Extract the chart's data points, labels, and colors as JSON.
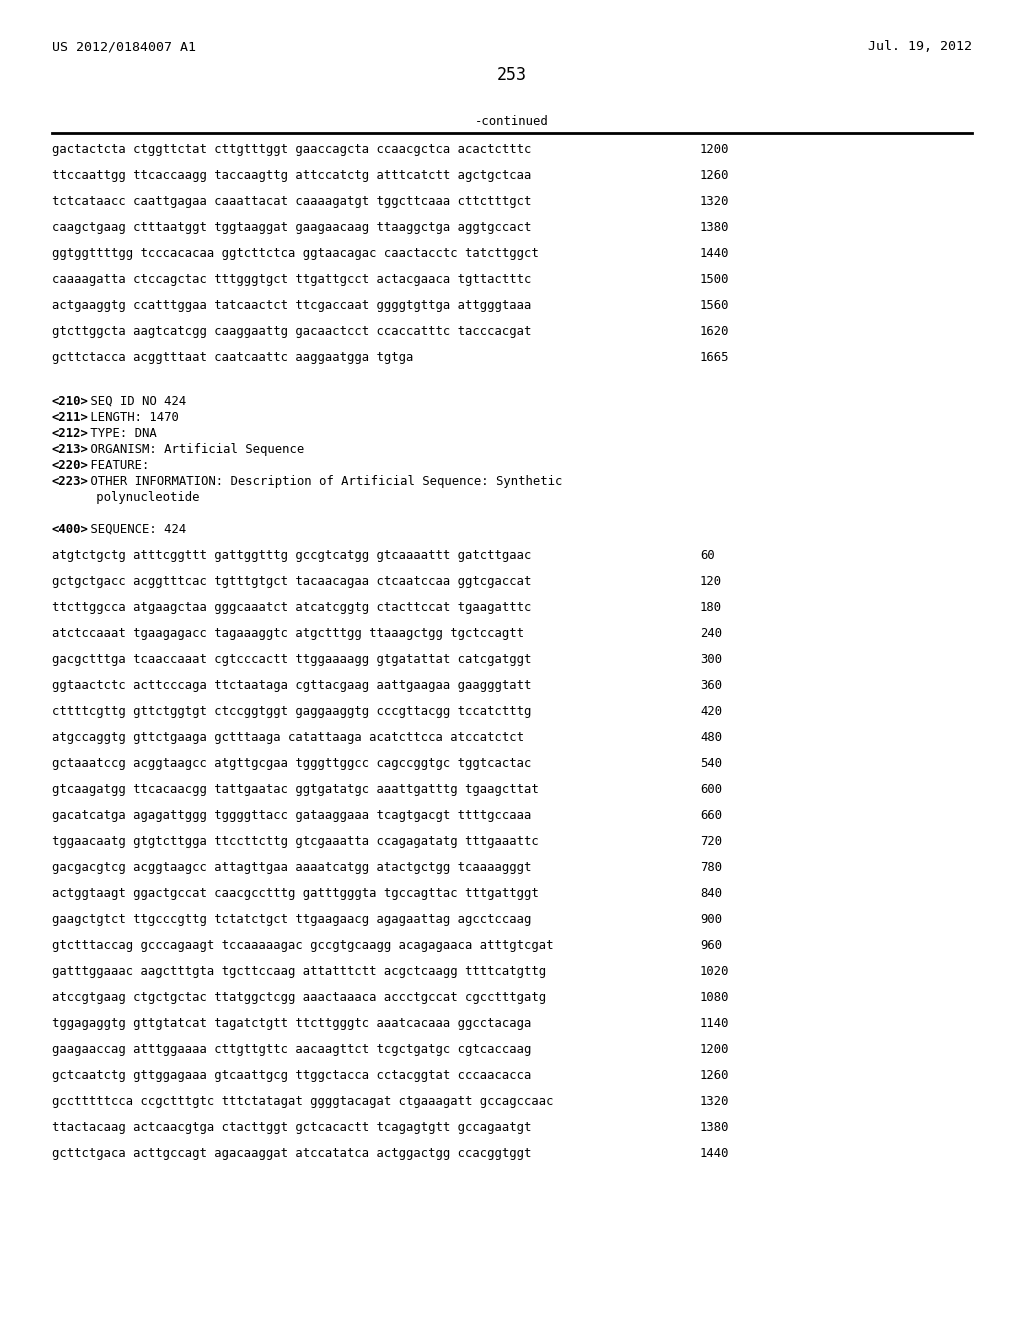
{
  "page_number": "253",
  "left_header": "US 2012/0184007 A1",
  "right_header": "Jul. 19, 2012",
  "continued_label": "-continued",
  "background_color": "#ffffff",
  "text_color": "#000000",
  "sequence_lines_top": [
    [
      "gactactcta ctggttctat cttgtttggt gaaccagcta ccaacgctca acactctttc",
      "1200"
    ],
    [
      "ttccaattgg ttcaccaagg taccaagttg attccatctg atttcatctt agctgctcaa",
      "1260"
    ],
    [
      "tctcataacc caattgagaa caaattacat caaaagatgt tggcttcaaa cttctttgct",
      "1320"
    ],
    [
      "caagctgaag ctttaatggt tggtaaggat gaagaacaag ttaaggctga aggtgccact",
      "1380"
    ],
    [
      "ggtggttttgg tcccacacaa ggtcttctca ggtaacagac caactacctc tatcttggct",
      "1440"
    ],
    [
      "caaaagatta ctccagctac tttgggtgct ttgattgcct actacgaaca tgttactttc",
      "1500"
    ],
    [
      "actgaaggtg ccatttggaa tatcaactct ttcgaccaat ggggtgttga attgggtaaa",
      "1560"
    ],
    [
      "gtcttggcta aagtcatcgg caaggaattg gacaactcct ccaccatttc tacccacgat",
      "1620"
    ],
    [
      "gcttctacca acggtttaat caatcaattc aaggaatgga tgtga",
      "1665"
    ]
  ],
  "metadata_lines": [
    [
      "<210>",
      " SEQ ID NO 424"
    ],
    [
      "<211>",
      " LENGTH: 1470"
    ],
    [
      "<212>",
      " TYPE: DNA"
    ],
    [
      "<213>",
      " ORGANISM: Artificial Sequence"
    ],
    [
      "<220>",
      " FEATURE:"
    ],
    [
      "<223>",
      " OTHER INFORMATION: Description of Artificial Sequence: Synthetic"
    ],
    [
      "",
      "      polynucleotide"
    ]
  ],
  "sequence_label": [
    "<400>",
    " SEQUENCE: 424"
  ],
  "sequence_lines_bottom": [
    [
      "atgtctgctg atttcggttt gattggtttg gccgtcatgg gtcaaaattt gatcttgaac",
      "60"
    ],
    [
      "gctgctgacc acggtttcac tgtttgtgct tacaacagaa ctcaatccaa ggtcgaccat",
      "120"
    ],
    [
      "ttcttggcca atgaagctaa gggcaaatct atcatcggtg ctacttccat tgaagatttc",
      "180"
    ],
    [
      "atctccaaat tgaagagacc tagaaaggtc atgctttgg ttaaagctgg tgctccagtt",
      "240"
    ],
    [
      "gacgctttga tcaaccaaat cgtcccactt ttggaaaagg gtgatattat catcgatggt",
      "300"
    ],
    [
      "ggtaactctc acttcccaga ttctaataga cgttacgaag aattgaagaa gaagggtatt",
      "360"
    ],
    [
      "cttttcgttg gttctggtgt ctccggtggt gaggaaggtg cccgttacgg tccatctttg",
      "420"
    ],
    [
      "atgccaggtg gttctgaaga gctttaaga catattaaga acatcttcca atccatctct",
      "480"
    ],
    [
      "gctaaatccg acggtaagcc atgttgcgaa tgggttggcc cagccggtgc tggtcactac",
      "540"
    ],
    [
      "gtcaagatgg ttcacaacgg tattgaatac ggtgatatgc aaattgatttg tgaagcttat",
      "600"
    ],
    [
      "gacatcatga agagattggg tggggttacc gataaggaaa tcagtgacgt ttttgccaaa",
      "660"
    ],
    [
      "tggaacaatg gtgtcttgga ttccttcttg gtcgaaatta ccagagatatg tttgaaattc",
      "720"
    ],
    [
      "gacgacgtcg acggtaagcc attagttgaa aaaatcatgg atactgctgg tcaaaagggt",
      "780"
    ],
    [
      "actggtaagt ggactgccat caacgcctttg gatttgggta tgccagttac tttgattggt",
      "840"
    ],
    [
      "gaagctgtct ttgcccgttg tctatctgct ttgaagaacg agagaattag agcctccaag",
      "900"
    ],
    [
      "gtctttaccag gcccagaagt tccaaaaagac gccgtgcaagg acagagaaca atttgtcgat",
      "960"
    ],
    [
      "gatttggaaac aagctttgta tgcttccaag attatttctt acgctcaagg ttttcatgttg",
      "1020"
    ],
    [
      "atccgtgaag ctgctgctac ttatggctcgg aaactaaaca accctgccat cgcctttgatg",
      "1080"
    ],
    [
      "tggagaggtg gttgtatcat tagatctgtt ttcttgggtc aaatcacaaa ggcctacaga",
      "1140"
    ],
    [
      "gaagaaccag atttggaaaa cttgttgttc aacaagttct tcgctgatgc cgtcaccaag",
      "1200"
    ],
    [
      "gctcaatctg gttggagaaa gtcaattgcg ttggctacca cctacggtat cccaacacca",
      "1260"
    ],
    [
      "gcctttttcca ccgctttgtc tttctatagat ggggtacagat ctgaaagatt gccagccaac",
      "1320"
    ],
    [
      "ttactacaag actcaacgtga ctacttggt gctcacactt tcagagtgtt gccagaatgt",
      "1380"
    ],
    [
      "gcttctgaca acttgccagt agacaaggat atccatatca actggactgg ccacggtggt",
      "1440"
    ]
  ]
}
